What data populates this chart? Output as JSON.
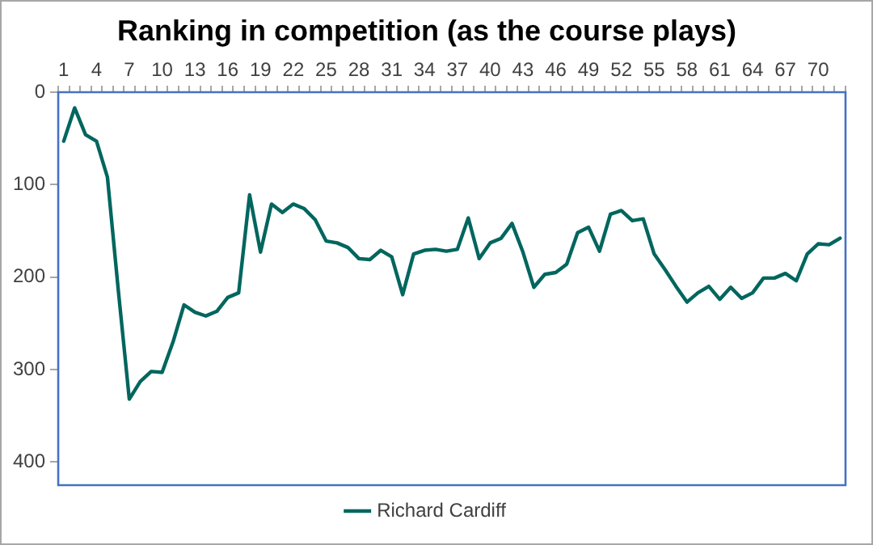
{
  "chart_data": {
    "type": "line",
    "title": "Ranking in competition (as the course plays)",
    "categories": [
      "1",
      null,
      null,
      "4",
      null,
      null,
      "7",
      null,
      null,
      "10",
      null,
      null,
      "13",
      null,
      null,
      "16",
      null,
      null,
      "19",
      null,
      null,
      "22",
      null,
      null,
      "25",
      null,
      null,
      "28",
      null,
      null,
      "31",
      null,
      null,
      "34",
      null,
      null,
      "37",
      null,
      null,
      "40",
      null,
      null,
      "43",
      null,
      null,
      "46",
      null,
      null,
      "49",
      null,
      null,
      "52",
      null,
      null,
      "55",
      null,
      null,
      "58",
      null,
      null,
      "61",
      null,
      null,
      "64",
      null,
      null,
      "67",
      null,
      null,
      "70",
      null,
      null
    ],
    "series": [
      {
        "name": "Richard Cardiff",
        "color": "#00665e",
        "values": [
          53,
          17,
          46,
          53,
          92,
          215,
          332,
          313,
          302,
          303,
          270,
          230,
          238,
          242,
          237,
          222,
          217,
          111,
          173,
          121,
          130,
          121,
          126,
          138,
          161,
          163,
          168,
          180,
          181,
          171,
          178,
          219,
          175,
          171,
          170,
          172,
          170,
          136,
          180,
          163,
          158,
          142,
          173,
          211,
          197,
          195,
          186,
          152,
          146,
          172,
          132,
          128,
          139,
          137,
          175,
          192,
          210,
          227,
          217,
          210,
          224,
          211,
          223,
          217,
          201,
          201,
          196,
          204,
          175,
          164,
          165,
          158
        ]
      }
    ],
    "ylim": [
      425,
      0
    ],
    "yticks": [
      0,
      100,
      200,
      300,
      400
    ],
    "grid": false,
    "legend": "bottom",
    "marker": "none",
    "line_style": "solid"
  }
}
